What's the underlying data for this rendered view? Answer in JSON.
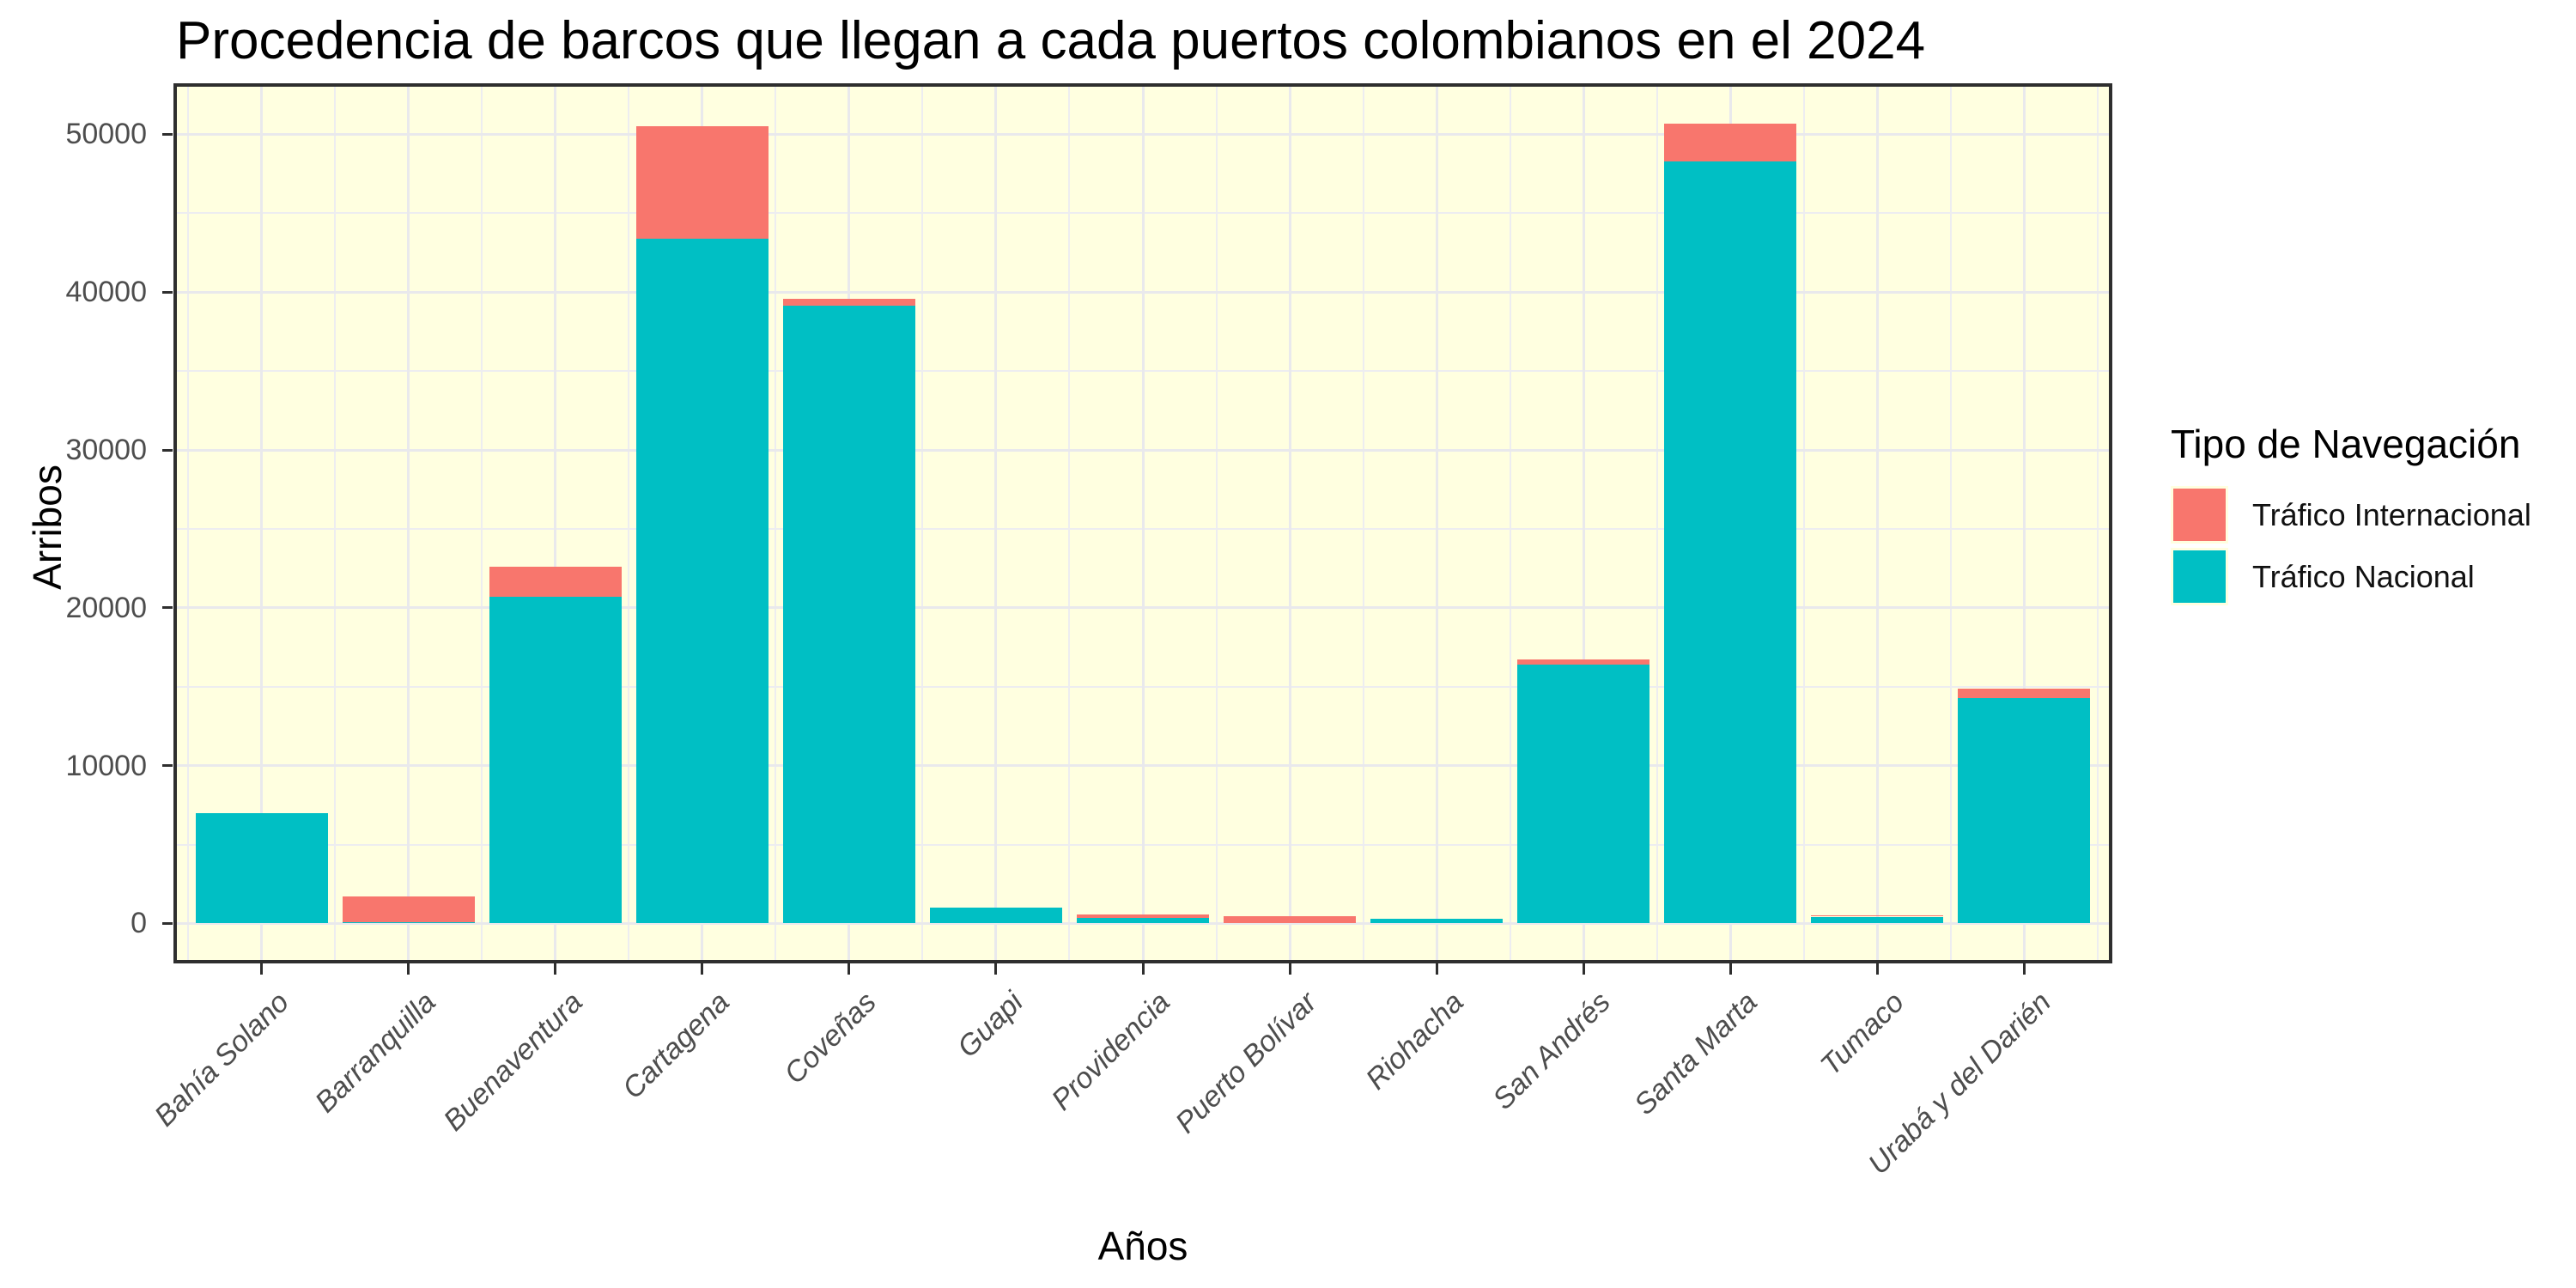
{
  "chart_data": {
    "type": "bar",
    "stacked": true,
    "title": "Procedencia de barcos que llegan a cada puertos colombianos en el 2024",
    "xlabel": "Años",
    "ylabel": "Arribos",
    "categories": [
      "Bahía Solano",
      "Barranquilla",
      "Buenaventura",
      "Cartagena",
      "Coveñas",
      "Guapi",
      "Providencia",
      "Puerto Bolívar",
      "Riohacha",
      "San Andrés",
      "Santa Marta",
      "Tumaco",
      "Urabá y del Darién"
    ],
    "series": [
      {
        "name": "Tráfico Internacional",
        "color": "#F8766D",
        "stack_position": "top",
        "values": [
          0,
          1630,
          1900,
          7100,
          430,
          0,
          210,
          480,
          0,
          350,
          2400,
          60,
          600
        ]
      },
      {
        "name": "Tráfico Nacional",
        "color": "#00BFC4",
        "stack_position": "bottom",
        "values": [
          7000,
          80,
          20700,
          43400,
          39130,
          1000,
          370,
          0,
          280,
          16400,
          48300,
          430,
          14300
        ]
      }
    ],
    "y_ticks": [
      0,
      10000,
      20000,
      30000,
      40000,
      50000
    ],
    "y_minor_ticks": [
      5000,
      15000,
      25000,
      35000,
      45000
    ],
    "ylim": [
      -2535,
      53235
    ],
    "bar_width_fraction": 0.9,
    "grid": true,
    "legend_title": "Tipo de Navegación",
    "legend_position": "right",
    "panel_background": "#FFFFE0",
    "grid_major_color": "#E9E9EC",
    "grid_minor_color": "#EDEDF0",
    "axis_text_color": "#4d4d4d",
    "border_color": "#2e2e2e"
  }
}
